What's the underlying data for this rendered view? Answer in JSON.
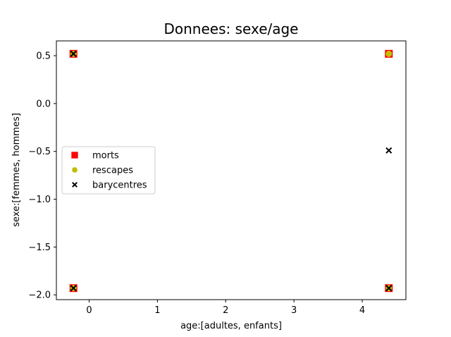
{
  "chart_data": {
    "type": "scatter",
    "title": "Donnees: sexe/age",
    "xlabel": "age:[adultes, enfants]",
    "ylabel": "sexe:[femmes, hommes]",
    "xlim": [
      -0.48,
      4.64
    ],
    "ylim": [
      -2.05,
      0.655
    ],
    "xticks": [
      0,
      1,
      2,
      3,
      4
    ],
    "yticks": [
      0.5,
      0.0,
      -0.5,
      -1.0,
      -1.5,
      -2.0
    ],
    "xtick_labels": [
      "0",
      "1",
      "2",
      "3",
      "4"
    ],
    "ytick_labels": [
      "0.5",
      "0.0",
      "−0.5",
      "−1.0",
      "−1.5",
      "−2.0"
    ],
    "grid": false,
    "legend_position": "center-left",
    "series": [
      {
        "name": "morts",
        "marker": "square",
        "color": "#ff0000",
        "points": [
          [
            -0.23,
            0.52
          ],
          [
            -0.23,
            -1.93
          ],
          [
            4.39,
            0.52
          ],
          [
            4.39,
            -1.93
          ]
        ]
      },
      {
        "name": "rescapes",
        "marker": "circle",
        "color": "#bfbf00",
        "points": [
          [
            -0.23,
            0.52
          ],
          [
            -0.23,
            -1.93
          ],
          [
            4.39,
            0.52
          ],
          [
            4.39,
            -1.93
          ]
        ]
      },
      {
        "name": "barycentres",
        "marker": "x",
        "color": "#000000",
        "points": [
          [
            -0.23,
            0.52
          ],
          [
            -0.23,
            -1.93
          ],
          [
            4.39,
            -0.49
          ],
          [
            4.39,
            -1.93
          ]
        ]
      }
    ]
  }
}
